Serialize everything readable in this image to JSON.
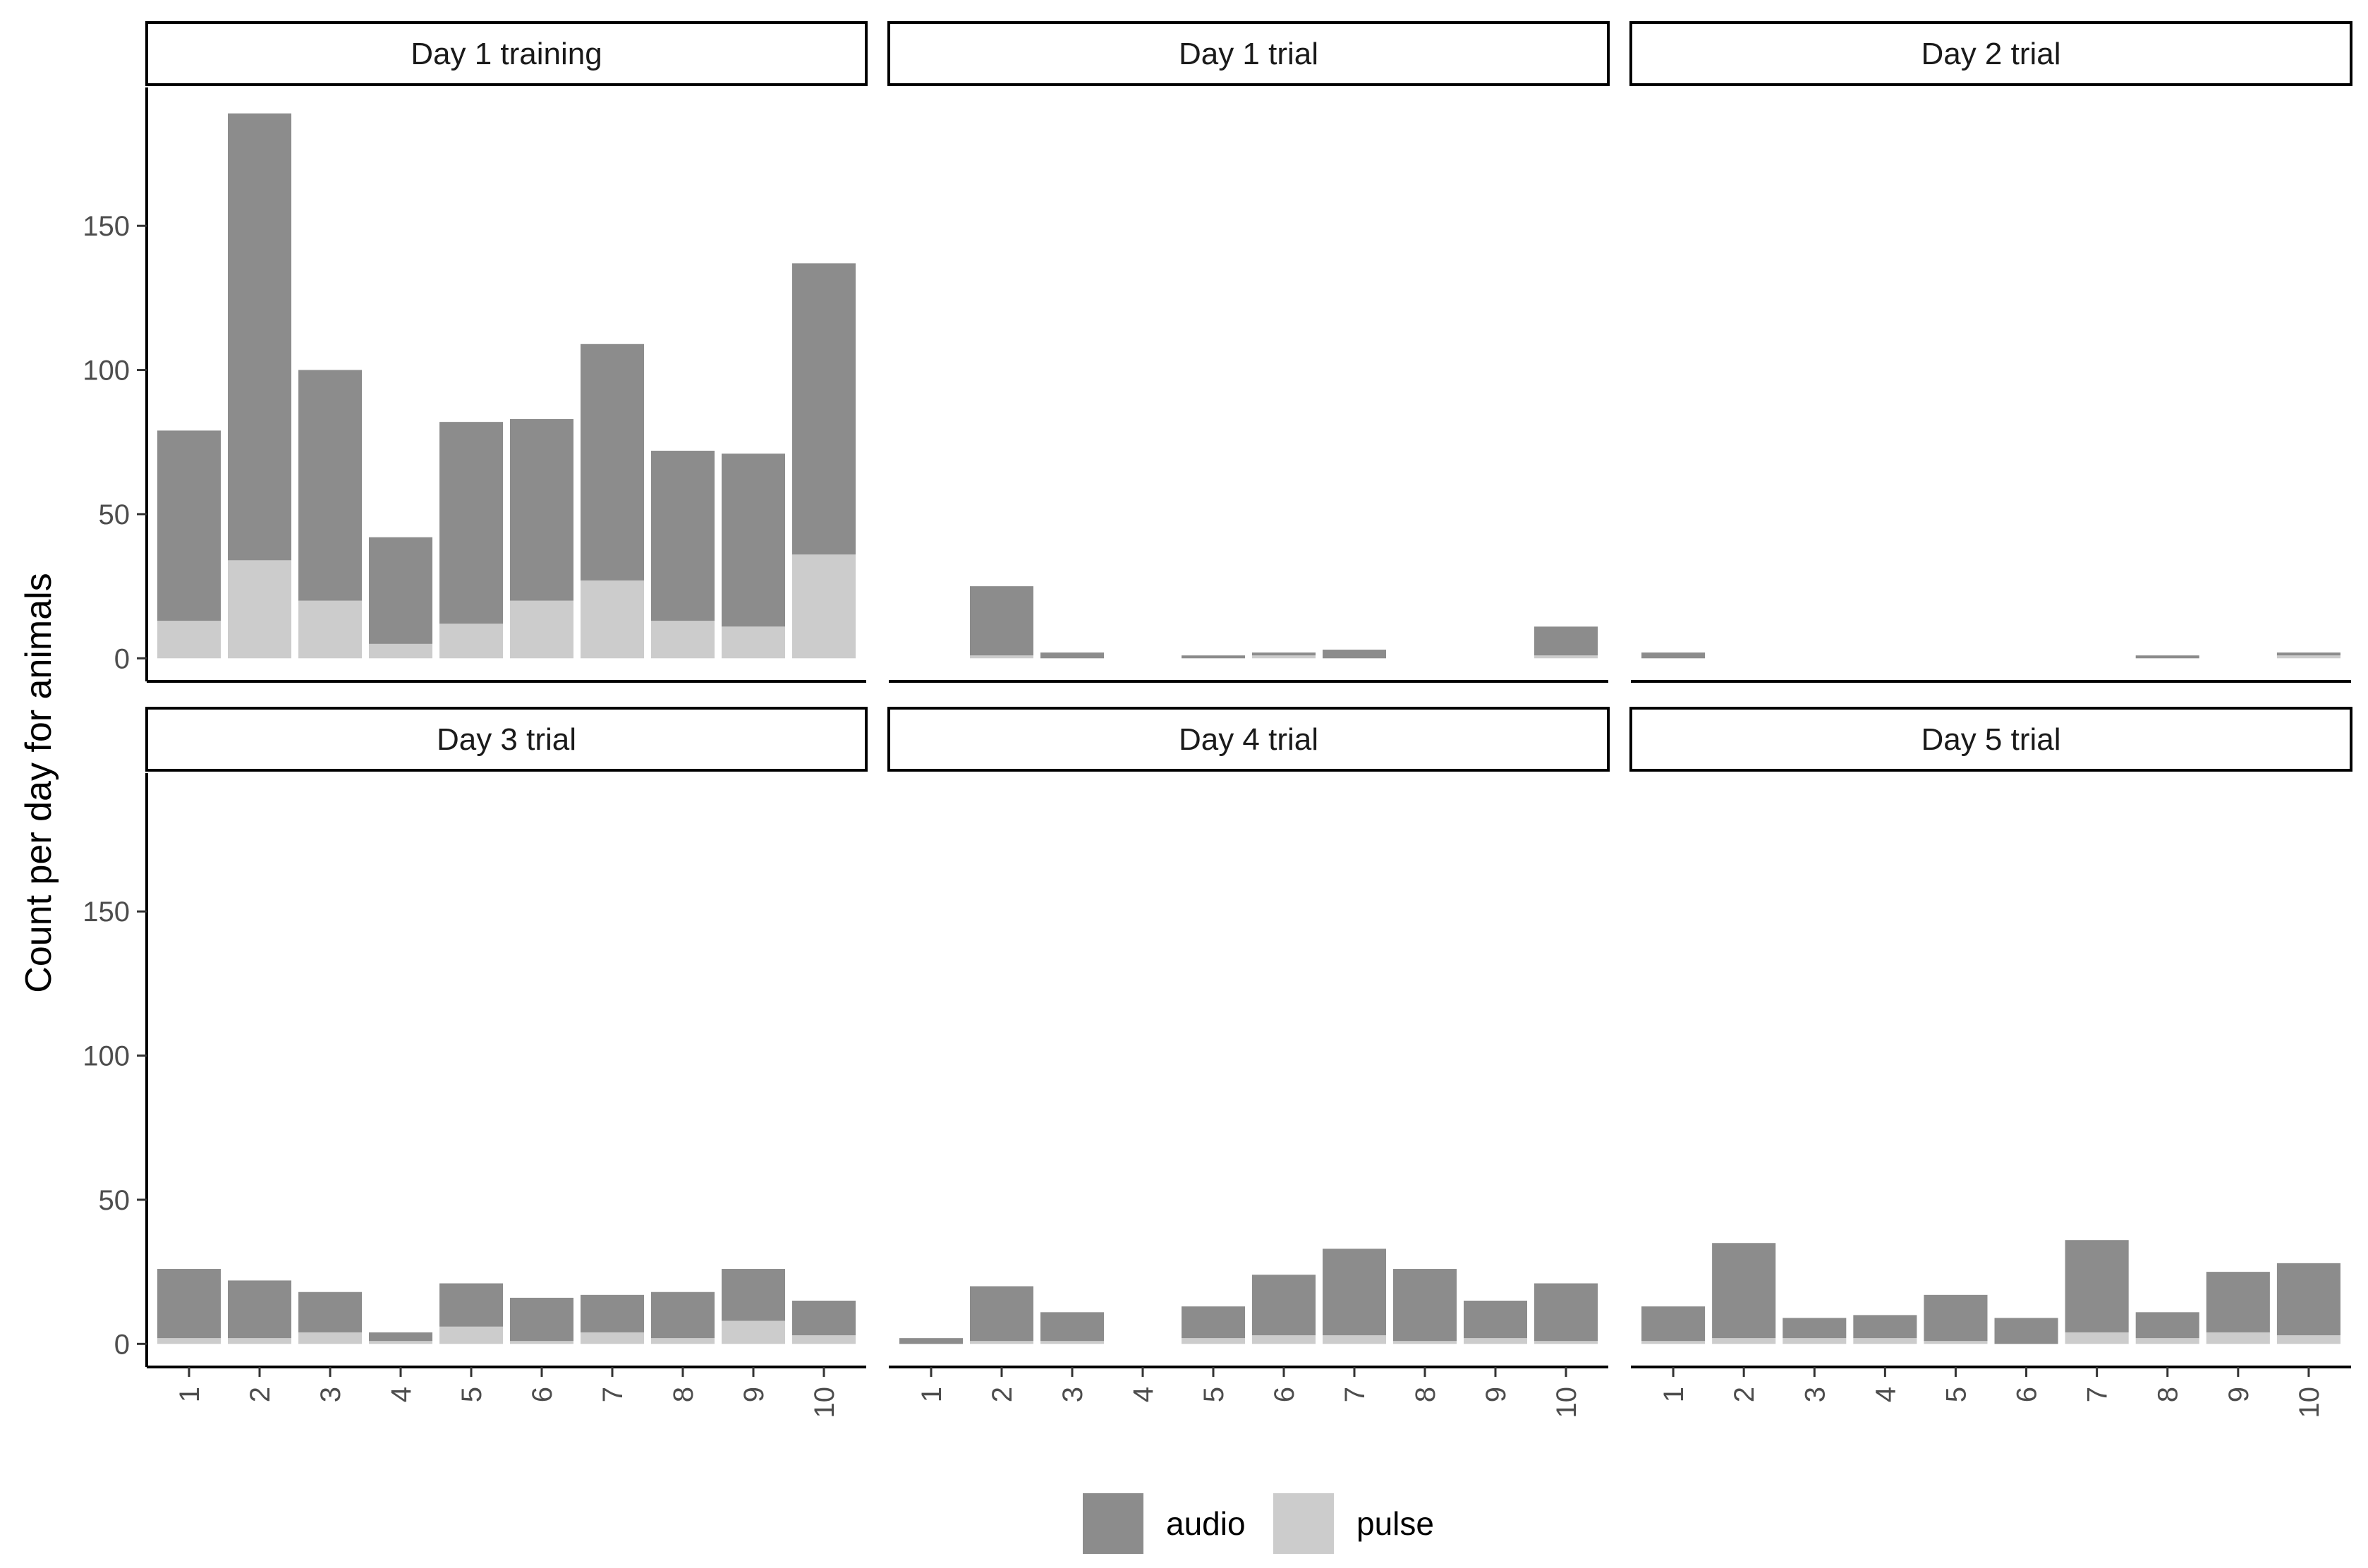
{
  "chart_data": {
    "type": "bar",
    "stacked": true,
    "ylabel": "Count per day for animals",
    "xlabel": "",
    "ylim": [
      -8,
      198
    ],
    "y_ticks": [
      0,
      50,
      100,
      150
    ],
    "y_tick_labels": [
      "0",
      "50",
      "100",
      "150"
    ],
    "categories": [
      "1",
      "2",
      "3",
      "4",
      "5",
      "6",
      "7",
      "8",
      "9",
      "10"
    ],
    "legend": {
      "position": "bottom",
      "entries": [
        {
          "name": "audio",
          "color": "#8c8c8c"
        },
        {
          "name": "pulse",
          "color": "#cccccc"
        }
      ]
    },
    "panels": [
      {
        "title": "Day 1 training",
        "series": [
          {
            "name": "pulse",
            "values": [
              13,
              34,
              20,
              5,
              12,
              20,
              27,
              13,
              11,
              36
            ]
          },
          {
            "name": "audio",
            "values": [
              66,
              155,
              80,
              37,
              70,
              63,
              82,
              59,
              60,
              101
            ]
          }
        ]
      },
      {
        "title": "Day 1 trial",
        "series": [
          {
            "name": "pulse",
            "values": [
              0,
              1,
              0,
              0,
              0,
              1,
              0,
              0,
              0,
              1
            ]
          },
          {
            "name": "audio",
            "values": [
              0,
              24,
              2,
              0,
              1,
              1,
              3,
              0,
              0,
              10
            ]
          }
        ]
      },
      {
        "title": "Day 2 trial",
        "series": [
          {
            "name": "pulse",
            "values": [
              0,
              0,
              0,
              0,
              0,
              0,
              0,
              0,
              0,
              1
            ]
          },
          {
            "name": "audio",
            "values": [
              2,
              0,
              0,
              0,
              0,
              0,
              0,
              1,
              0,
              1
            ]
          }
        ]
      },
      {
        "title": "Day 3 trial",
        "series": [
          {
            "name": "pulse",
            "values": [
              2,
              2,
              4,
              1,
              6,
              1,
              4,
              2,
              8,
              3
            ]
          },
          {
            "name": "audio",
            "values": [
              24,
              20,
              14,
              3,
              15,
              15,
              13,
              16,
              18,
              12
            ]
          }
        ]
      },
      {
        "title": "Day 4 trial",
        "series": [
          {
            "name": "pulse",
            "values": [
              0,
              1,
              1,
              0,
              2,
              3,
              3,
              1,
              2,
              1
            ]
          },
          {
            "name": "audio",
            "values": [
              2,
              19,
              10,
              0,
              11,
              21,
              30,
              25,
              13,
              20
            ]
          }
        ]
      },
      {
        "title": "Day 5 trial",
        "series": [
          {
            "name": "pulse",
            "values": [
              1,
              2,
              2,
              2,
              1,
              0,
              4,
              2,
              4,
              3
            ]
          },
          {
            "name": "audio",
            "values": [
              12,
              33,
              7,
              8,
              16,
              9,
              32,
              9,
              21,
              25
            ]
          }
        ]
      }
    ]
  }
}
